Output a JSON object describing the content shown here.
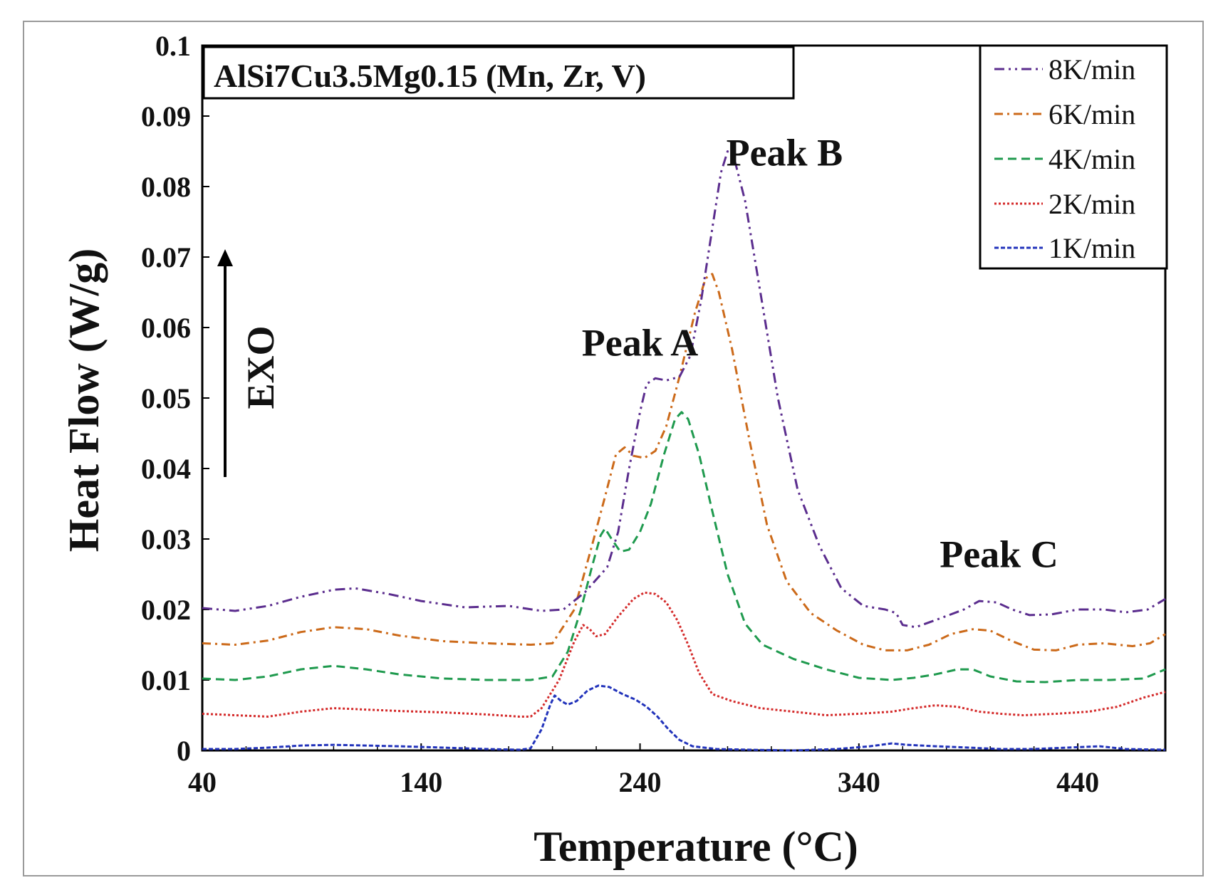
{
  "chart_data": {
    "type": "line",
    "title": "",
    "xlabel": "Temperature (°C)",
    "ylabel": "Heat Flow (W/g)",
    "xlim": [
      40,
      480
    ],
    "ylim": [
      0,
      0.1
    ],
    "x_ticks": [
      40,
      140,
      240,
      340,
      440
    ],
    "x_tick_labels": [
      "40",
      "140",
      "240",
      "340",
      "440"
    ],
    "y_ticks": [
      0,
      0.01,
      0.02,
      0.03,
      0.04,
      0.05,
      0.06,
      0.07,
      0.08,
      0.09,
      0.1
    ],
    "y_tick_labels": [
      "0",
      "0.01",
      "0.02",
      "0.03",
      "0.04",
      "0.05",
      "0.06",
      "0.07",
      "0.08",
      "0.09",
      "0.1"
    ],
    "grid": false,
    "legend_position": "top-right",
    "sample_label": "AlSi7Cu3.5Mg0.15 (Mn, Zr, V)",
    "exo_label": "EXO",
    "annotations": [
      {
        "text": "Peak A",
        "x": 240,
        "y": 0.056
      },
      {
        "text": "Peak B",
        "x": 306,
        "y": 0.083
      },
      {
        "text": "Peak C",
        "x": 404,
        "y": 0.026
      }
    ],
    "series": [
      {
        "name": "8K/min",
        "color": "#5b2d8e",
        "dash": "14 6 3 6 3 6",
        "points": [
          [
            40,
            0.0202
          ],
          [
            55,
            0.0198
          ],
          [
            70,
            0.0205
          ],
          [
            85,
            0.0218
          ],
          [
            100,
            0.0228
          ],
          [
            110,
            0.023
          ],
          [
            125,
            0.0222
          ],
          [
            140,
            0.0212
          ],
          [
            160,
            0.0203
          ],
          [
            180,
            0.0205
          ],
          [
            195,
            0.0198
          ],
          [
            205,
            0.02
          ],
          [
            215,
            0.0225
          ],
          [
            225,
            0.026
          ],
          [
            230,
            0.031
          ],
          [
            235,
            0.04
          ],
          [
            240,
            0.048
          ],
          [
            243,
            0.052
          ],
          [
            247,
            0.0528
          ],
          [
            252,
            0.0525
          ],
          [
            258,
            0.053
          ],
          [
            263,
            0.056
          ],
          [
            268,
            0.064
          ],
          [
            273,
            0.074
          ],
          [
            277,
            0.082
          ],
          [
            280,
            0.085
          ],
          [
            283,
            0.084
          ],
          [
            288,
            0.078
          ],
          [
            295,
            0.065
          ],
          [
            303,
            0.05
          ],
          [
            312,
            0.037
          ],
          [
            322,
            0.029
          ],
          [
            332,
            0.023
          ],
          [
            342,
            0.0205
          ],
          [
            352,
            0.02
          ],
          [
            357,
            0.0195
          ],
          [
            360,
            0.0178
          ],
          [
            366,
            0.0175
          ],
          [
            375,
            0.0185
          ],
          [
            388,
            0.02
          ],
          [
            395,
            0.0212
          ],
          [
            403,
            0.021
          ],
          [
            410,
            0.02
          ],
          [
            418,
            0.0192
          ],
          [
            428,
            0.0193
          ],
          [
            440,
            0.02
          ],
          [
            452,
            0.02
          ],
          [
            462,
            0.0196
          ],
          [
            472,
            0.02
          ],
          [
            480,
            0.0215
          ]
        ]
      },
      {
        "name": "6K/min",
        "color": "#cc6a1a",
        "dash": "12 6 3 6",
        "points": [
          [
            40,
            0.0152
          ],
          [
            55,
            0.015
          ],
          [
            70,
            0.0156
          ],
          [
            85,
            0.0168
          ],
          [
            100,
            0.0175
          ],
          [
            115,
            0.0172
          ],
          [
            130,
            0.0163
          ],
          [
            150,
            0.0155
          ],
          [
            170,
            0.0152
          ],
          [
            190,
            0.015
          ],
          [
            200,
            0.0152
          ],
          [
            210,
            0.02
          ],
          [
            218,
            0.029
          ],
          [
            224,
            0.036
          ],
          [
            229,
            0.042
          ],
          [
            233,
            0.043
          ],
          [
            237,
            0.0418
          ],
          [
            242,
            0.0415
          ],
          [
            247,
            0.0425
          ],
          [
            252,
            0.046
          ],
          [
            258,
            0.053
          ],
          [
            265,
            0.062
          ],
          [
            270,
            0.067
          ],
          [
            273,
            0.0676
          ],
          [
            276,
            0.065
          ],
          [
            282,
            0.057
          ],
          [
            290,
            0.044
          ],
          [
            298,
            0.032
          ],
          [
            307,
            0.024
          ],
          [
            318,
            0.0195
          ],
          [
            330,
            0.017
          ],
          [
            342,
            0.015
          ],
          [
            352,
            0.0142
          ],
          [
            362,
            0.0142
          ],
          [
            372,
            0.015
          ],
          [
            382,
            0.0165
          ],
          [
            392,
            0.0172
          ],
          [
            400,
            0.017
          ],
          [
            410,
            0.0155
          ],
          [
            420,
            0.0143
          ],
          [
            430,
            0.0142
          ],
          [
            440,
            0.015
          ],
          [
            452,
            0.0152
          ],
          [
            465,
            0.0148
          ],
          [
            473,
            0.0152
          ],
          [
            480,
            0.0165
          ]
        ]
      },
      {
        "name": "4K/min",
        "color": "#1f9a4e",
        "dash": "12 7",
        "points": [
          [
            40,
            0.0102
          ],
          [
            55,
            0.01
          ],
          [
            70,
            0.0105
          ],
          [
            85,
            0.0115
          ],
          [
            100,
            0.012
          ],
          [
            115,
            0.0115
          ],
          [
            130,
            0.0108
          ],
          [
            150,
            0.0102
          ],
          [
            170,
            0.01
          ],
          [
            190,
            0.01
          ],
          [
            200,
            0.0105
          ],
          [
            207,
            0.014
          ],
          [
            213,
            0.02
          ],
          [
            218,
            0.026
          ],
          [
            222,
            0.0305
          ],
          [
            224,
            0.0315
          ],
          [
            227,
            0.03
          ],
          [
            231,
            0.0282
          ],
          [
            235,
            0.0285
          ],
          [
            240,
            0.031
          ],
          [
            245,
            0.035
          ],
          [
            251,
            0.042
          ],
          [
            256,
            0.047
          ],
          [
            259,
            0.048
          ],
          [
            262,
            0.047
          ],
          [
            267,
            0.042
          ],
          [
            273,
            0.034
          ],
          [
            280,
            0.025
          ],
          [
            288,
            0.018
          ],
          [
            296,
            0.015
          ],
          [
            310,
            0.013
          ],
          [
            325,
            0.0115
          ],
          [
            340,
            0.0103
          ],
          [
            355,
            0.01
          ],
          [
            365,
            0.0103
          ],
          [
            375,
            0.0108
          ],
          [
            385,
            0.0115
          ],
          [
            392,
            0.0115
          ],
          [
            400,
            0.0105
          ],
          [
            412,
            0.0098
          ],
          [
            425,
            0.0097
          ],
          [
            440,
            0.01
          ],
          [
            455,
            0.01
          ],
          [
            470,
            0.0102
          ],
          [
            480,
            0.0115
          ]
        ]
      },
      {
        "name": "2K/min",
        "color": "#d42a2a",
        "dash": "3 3",
        "points": [
          [
            40,
            0.0052
          ],
          [
            55,
            0.005
          ],
          [
            70,
            0.0048
          ],
          [
            85,
            0.0055
          ],
          [
            100,
            0.006
          ],
          [
            115,
            0.0058
          ],
          [
            130,
            0.0056
          ],
          [
            150,
            0.0054
          ],
          [
            170,
            0.0051
          ],
          [
            185,
            0.0048
          ],
          [
            190,
            0.0048
          ],
          [
            195,
            0.006
          ],
          [
            203,
            0.01
          ],
          [
            210,
            0.0155
          ],
          [
            214,
            0.0178
          ],
          [
            217,
            0.0172
          ],
          [
            220,
            0.0162
          ],
          [
            224,
            0.0165
          ],
          [
            230,
            0.019
          ],
          [
            237,
            0.0215
          ],
          [
            242,
            0.0224
          ],
          [
            247,
            0.0222
          ],
          [
            252,
            0.021
          ],
          [
            257,
            0.0185
          ],
          [
            262,
            0.015
          ],
          [
            267,
            0.011
          ],
          [
            273,
            0.008
          ],
          [
            282,
            0.007
          ],
          [
            295,
            0.006
          ],
          [
            310,
            0.0055
          ],
          [
            325,
            0.005
          ],
          [
            340,
            0.0052
          ],
          [
            355,
            0.0055
          ],
          [
            365,
            0.006
          ],
          [
            375,
            0.0064
          ],
          [
            385,
            0.0062
          ],
          [
            395,
            0.0055
          ],
          [
            405,
            0.0052
          ],
          [
            415,
            0.005
          ],
          [
            430,
            0.0052
          ],
          [
            445,
            0.0055
          ],
          [
            458,
            0.0062
          ],
          [
            470,
            0.0075
          ],
          [
            480,
            0.0083
          ]
        ]
      },
      {
        "name": "1K/min",
        "color": "#2233bb",
        "dash": "6 3",
        "points": [
          [
            40,
            0.0002
          ],
          [
            55,
            0.0002
          ],
          [
            70,
            0.0004
          ],
          [
            85,
            0.0007
          ],
          [
            100,
            0.0008
          ],
          [
            115,
            0.0007
          ],
          [
            130,
            0.0006
          ],
          [
            150,
            0.0004
          ],
          [
            170,
            0.0002
          ],
          [
            185,
            0.0001
          ],
          [
            190,
            0.0003
          ],
          [
            195,
            0.003
          ],
          [
            199,
            0.0065
          ],
          [
            201,
            0.0078
          ],
          [
            204,
            0.007
          ],
          [
            207,
            0.0065
          ],
          [
            211,
            0.007
          ],
          [
            216,
            0.0085
          ],
          [
            221,
            0.0092
          ],
          [
            226,
            0.009
          ],
          [
            232,
            0.008
          ],
          [
            238,
            0.0072
          ],
          [
            243,
            0.0062
          ],
          [
            248,
            0.0048
          ],
          [
            253,
            0.003
          ],
          [
            258,
            0.0015
          ],
          [
            264,
            0.0006
          ],
          [
            275,
            0.0002
          ],
          [
            290,
            0.0001
          ],
          [
            310,
            0.0
          ],
          [
            330,
            0.0002
          ],
          [
            345,
            0.0006
          ],
          [
            355,
            0.001
          ],
          [
            362,
            0.0008
          ],
          [
            375,
            0.0006
          ],
          [
            390,
            0.0004
          ],
          [
            405,
            0.0002
          ],
          [
            420,
            0.0002
          ],
          [
            435,
            0.0004
          ],
          [
            450,
            0.0006
          ],
          [
            462,
            0.0002
          ],
          [
            480,
            0.0001
          ]
        ]
      }
    ]
  }
}
